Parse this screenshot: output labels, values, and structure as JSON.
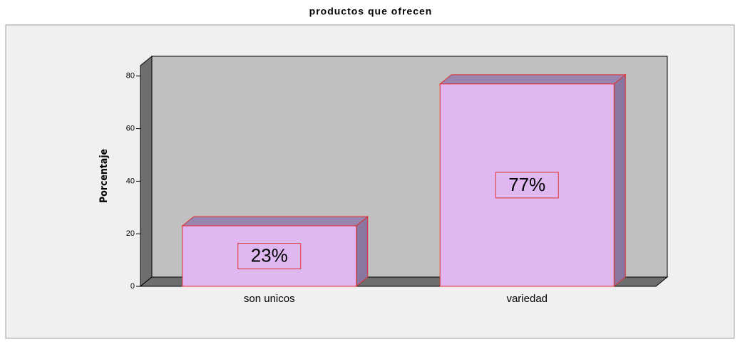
{
  "chart_data": {
    "type": "bar3d",
    "title": "productos  que ofrecen",
    "y_label": "Porcentaje",
    "categories": [
      "son unicos",
      "variedad"
    ],
    "values": [
      23,
      77
    ],
    "value_labels": [
      "23%",
      "77%"
    ],
    "color": "#dfb8f2",
    "ylim": [
      0,
      84
    ],
    "yticks": [
      0,
      20,
      40,
      60,
      80
    ]
  }
}
